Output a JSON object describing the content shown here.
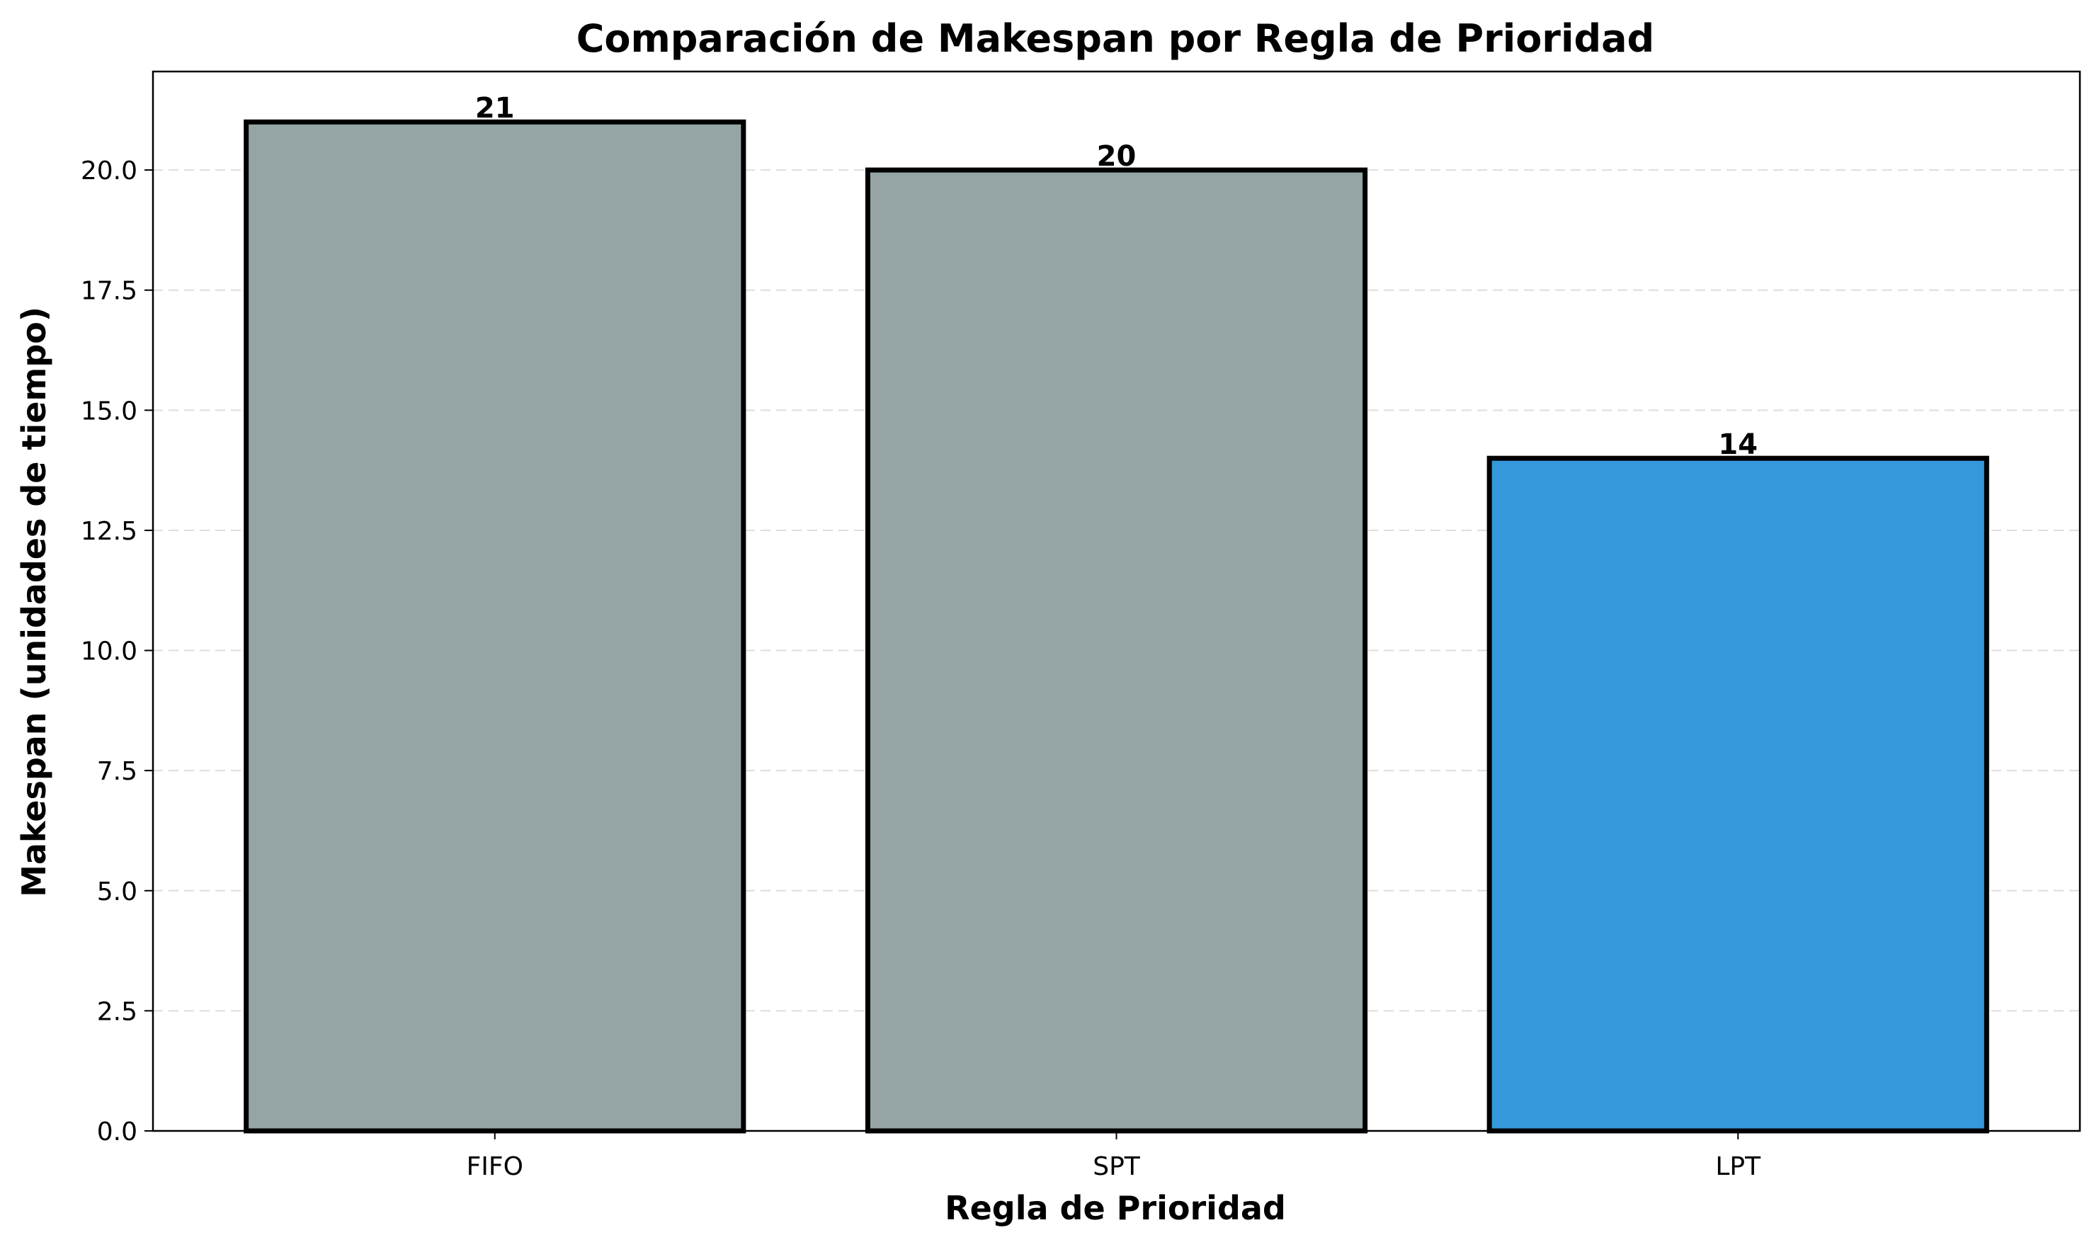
{
  "chart_data": {
    "type": "bar",
    "title": "Comparación de Makespan por Regla de Prioridad",
    "xlabel": "Regla de Prioridad",
    "ylabel": "Makespan (unidades de tiempo)",
    "categories": [
      "FIFO",
      "SPT",
      "LPT"
    ],
    "values": [
      21,
      20,
      14
    ],
    "data_labels": [
      "21",
      "20",
      "14"
    ],
    "bar_colors": [
      "#95a5a6",
      "#95a5a6",
      "#3498db"
    ],
    "ylim": [
      0,
      22.05
    ],
    "yticks": [
      0,
      2.5,
      5,
      7.5,
      10,
      12.5,
      15,
      17.5,
      20
    ],
    "ytick_labels": [
      "0.0",
      "2.5",
      "5.0",
      "7.5",
      "10.0",
      "12.5",
      "15.0",
      "17.5",
      "20.0"
    ],
    "grid": "y-dashed",
    "legend": "none"
  }
}
